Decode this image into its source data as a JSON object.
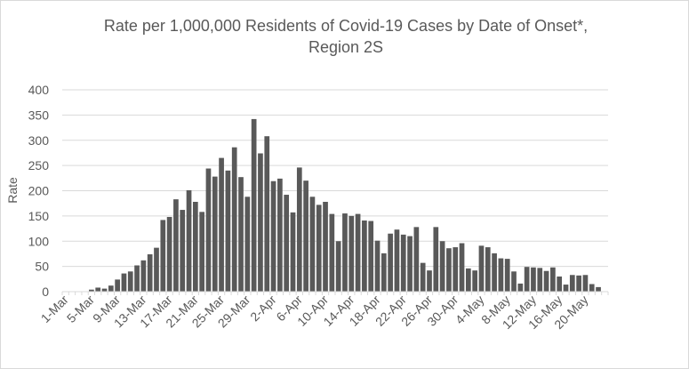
{
  "chart_data": {
    "type": "bar",
    "title": "Rate per 1,000,000 Residents of Covid-19 Cases by Date of Onset*,",
    "subtitle": "Region 2S",
    "xlabel": "",
    "ylabel": "Rate",
    "ylim": [
      0,
      400
    ],
    "yticks": [
      "0",
      "50",
      "100",
      "150",
      "200",
      "250",
      "300",
      "350",
      "400"
    ],
    "grid": true,
    "legend": "none",
    "bar_color": "#595959",
    "categories": [
      "1-Mar",
      "2-Mar",
      "3-Mar",
      "4-Mar",
      "5-Mar",
      "6-Mar",
      "7-Mar",
      "8-Mar",
      "9-Mar",
      "10-Mar",
      "11-Mar",
      "12-Mar",
      "13-Mar",
      "14-Mar",
      "15-Mar",
      "16-Mar",
      "17-Mar",
      "18-Mar",
      "19-Mar",
      "20-Mar",
      "21-Mar",
      "22-Mar",
      "23-Mar",
      "24-Mar",
      "25-Mar",
      "26-Mar",
      "27-Mar",
      "28-Mar",
      "29-Mar",
      "30-Mar",
      "31-Mar",
      "1-Apr",
      "2-Apr",
      "3-Apr",
      "4-Apr",
      "5-Apr",
      "6-Apr",
      "7-Apr",
      "8-Apr",
      "9-Apr",
      "10-Apr",
      "11-Apr",
      "12-Apr",
      "13-Apr",
      "14-Apr",
      "15-Apr",
      "16-Apr",
      "17-Apr",
      "18-Apr",
      "19-Apr",
      "20-Apr",
      "21-Apr",
      "22-Apr",
      "23-Apr",
      "24-Apr",
      "25-Apr",
      "26-Apr",
      "27-Apr",
      "28-Apr",
      "29-Apr",
      "30-Apr",
      "1-May",
      "2-May",
      "3-May",
      "4-May",
      "5-May",
      "6-May",
      "7-May",
      "8-May",
      "9-May",
      "10-May",
      "11-May",
      "12-May",
      "13-May",
      "14-May",
      "15-May",
      "16-May",
      "17-May",
      "18-May",
      "19-May",
      "20-May",
      "21-May",
      "22-May",
      "23-May"
    ],
    "tick_labels": [
      "1-Mar",
      "5-Mar",
      "9-Mar",
      "13-Mar",
      "17-Mar",
      "21-Mar",
      "25-Mar",
      "29-Mar",
      "2-Apr",
      "6-Apr",
      "10-Apr",
      "14-Apr",
      "18-Apr",
      "22-Apr",
      "26-Apr",
      "30-Apr",
      "4-May",
      "8-May",
      "12-May",
      "16-May",
      "20-May"
    ],
    "values": [
      0,
      0,
      0,
      0,
      4,
      8,
      6,
      12,
      24,
      36,
      40,
      52,
      62,
      74,
      87,
      142,
      148,
      183,
      162,
      201,
      178,
      158,
      244,
      228,
      265,
      240,
      286,
      227,
      188,
      342,
      274,
      308,
      219,
      224,
      192,
      157,
      246,
      220,
      188,
      172,
      178,
      154,
      100,
      155,
      150,
      154,
      141,
      140,
      101,
      76,
      115,
      123,
      113,
      110,
      128,
      57,
      42,
      128,
      100,
      86,
      88,
      96,
      46,
      42,
      91,
      88,
      76,
      66,
      65,
      40,
      16,
      49,
      48,
      47,
      41,
      48,
      30,
      14,
      33,
      32,
      33,
      15,
      9,
      0
    ]
  }
}
